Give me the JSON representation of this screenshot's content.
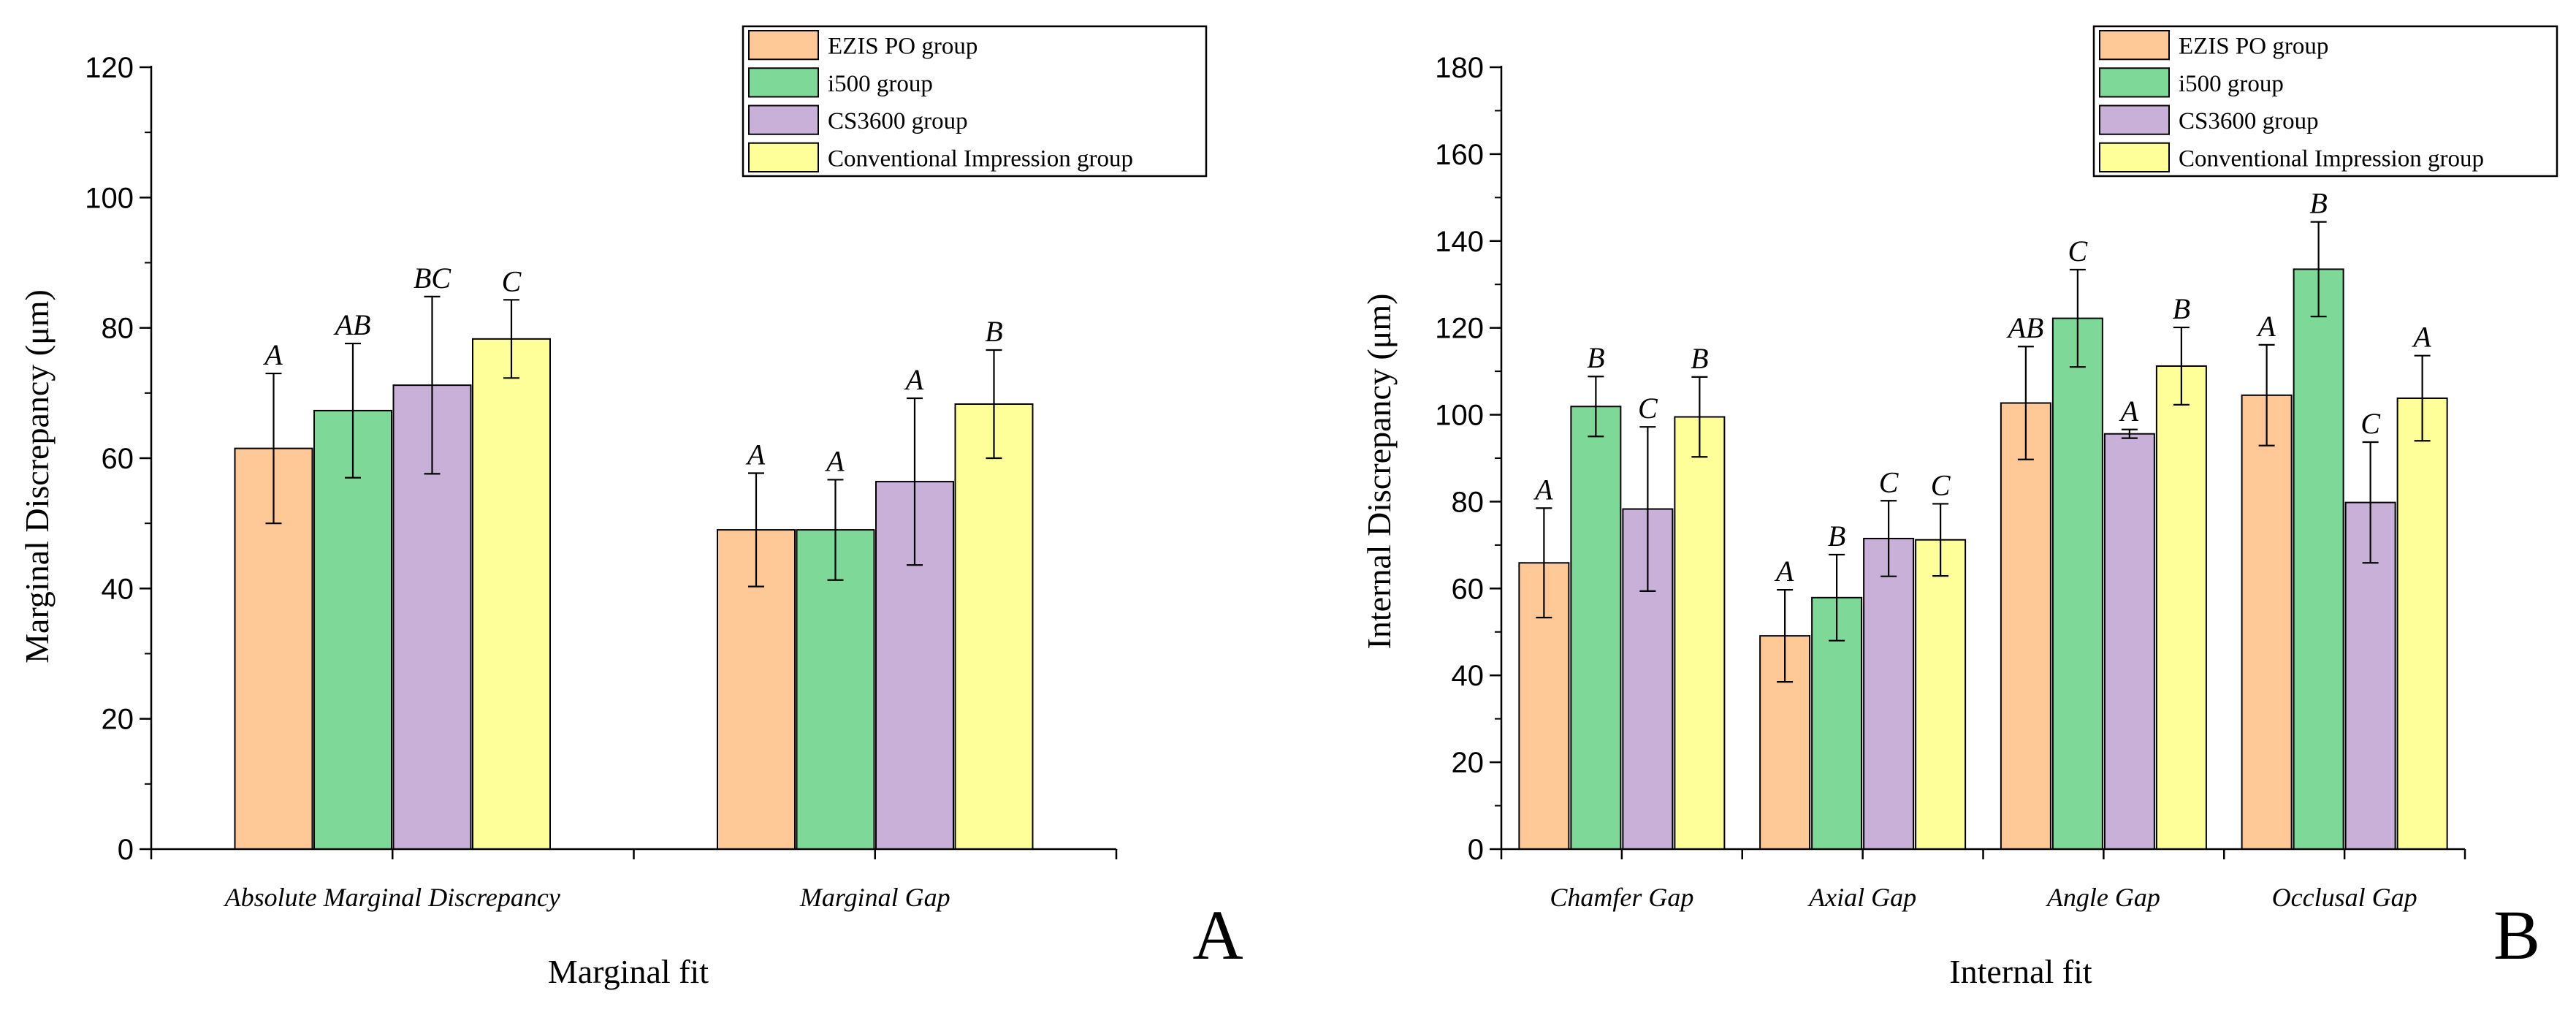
{
  "chart_data": [
    {
      "type": "bar",
      "panel_label": "A",
      "xlabel": "Marginal fit",
      "ylabel": "Marginal Discrepancy (μm)",
      "ylim": [
        0,
        120
      ],
      "yticks": [
        0,
        20,
        40,
        60,
        80,
        100,
        120
      ],
      "categories": [
        "Absolute Marginal Discrepancy",
        "Marginal Gap"
      ],
      "legend_position": "top-right",
      "grid": false,
      "series": [
        {
          "name": "EZIS PO group",
          "color": "#FFC896",
          "values": [
            61.5,
            49.0
          ],
          "errors": [
            11.5,
            8.7
          ],
          "letters": [
            "A",
            "A"
          ]
        },
        {
          "name": "i500 group",
          "color": "#7ED898",
          "values": [
            67.3,
            49.0
          ],
          "errors": [
            10.3,
            7.7
          ],
          "letters": [
            "AB",
            "A"
          ]
        },
        {
          "name": "CS3600 group",
          "color": "#C8B0D8",
          "values": [
            71.2,
            56.4
          ],
          "errors": [
            13.6,
            12.8
          ],
          "letters": [
            "BC",
            "A"
          ]
        },
        {
          "name": "Conventional Impression group",
          "color": "#FFFF99",
          "values": [
            78.3,
            68.3
          ],
          "errors": [
            6.0,
            8.3
          ],
          "letters": [
            "C",
            "B"
          ]
        }
      ]
    },
    {
      "type": "bar",
      "panel_label": "B",
      "xlabel": "Internal fit",
      "ylabel": "Internal Discrepancy (μm)",
      "ylim": [
        0,
        180
      ],
      "yticks": [
        0,
        20,
        40,
        60,
        80,
        100,
        120,
        140,
        160,
        180
      ],
      "categories": [
        "Chamfer Gap",
        "Axial Gap",
        "Angle Gap",
        "Occlusal Gap"
      ],
      "legend_position": "top-right",
      "grid": false,
      "series": [
        {
          "name": "EZIS PO group",
          "color": "#FFC896",
          "values": [
            65.9,
            49.1,
            102.7,
            104.5
          ],
          "errors": [
            12.6,
            10.6,
            13.0,
            11.6
          ],
          "letters": [
            "A",
            "A",
            "AB",
            "A"
          ]
        },
        {
          "name": "i500 group",
          "color": "#7ED898",
          "values": [
            101.9,
            57.9,
            122.2,
            133.5
          ],
          "errors": [
            6.9,
            9.9,
            11.2,
            10.9
          ],
          "letters": [
            "B",
            "B",
            "C",
            "B"
          ]
        },
        {
          "name": "CS3600 group",
          "color": "#C8B0D8",
          "values": [
            78.3,
            71.5,
            95.6,
            79.8
          ],
          "errors": [
            18.9,
            8.7,
            1.0,
            13.9
          ],
          "letters": [
            "C",
            "C",
            "A",
            "C"
          ]
        },
        {
          "name": "Conventional Impression group",
          "color": "#FFFF99",
          "values": [
            99.5,
            71.2,
            111.2,
            103.8
          ],
          "errors": [
            9.2,
            8.3,
            8.9,
            9.8
          ],
          "letters": [
            "B",
            "C",
            "B",
            "A"
          ]
        }
      ]
    }
  ]
}
